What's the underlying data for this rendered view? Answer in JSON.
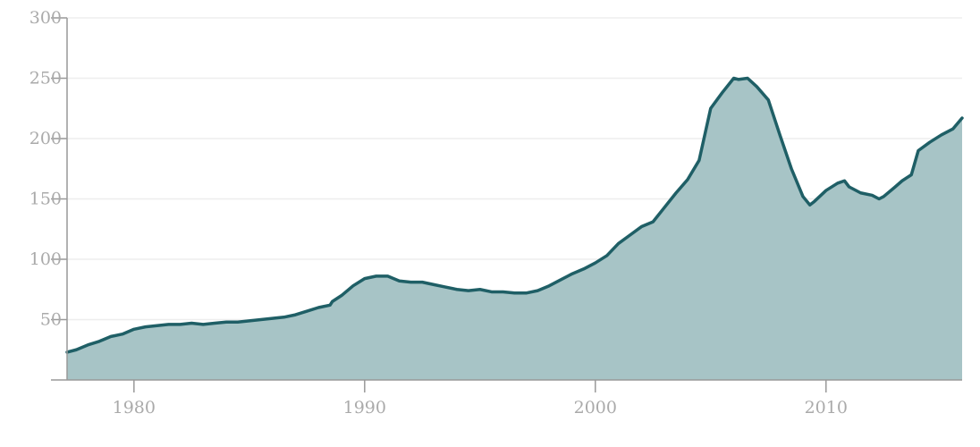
{
  "chart_data": {
    "type": "area",
    "title": "",
    "xlabel": "",
    "ylabel": "",
    "xlim": [
      1977.1,
      2015.9
    ],
    "ylim": [
      0,
      300
    ],
    "grid": true,
    "x_ticks": [
      1980,
      1990,
      2000,
      2010
    ],
    "x_tick_labels": [
      "1980",
      "1990",
      "2000",
      "2010"
    ],
    "y_ticks": [
      50,
      100,
      150,
      200,
      250,
      300
    ],
    "y_tick_labels": [
      "50",
      "100",
      "150",
      "200",
      "250",
      "300"
    ],
    "colors": {
      "line": "#1f5f66",
      "fill": "#a7c4c6",
      "grid": "#eeeeee",
      "axis": "#999999",
      "tick_label": "#aaaaaa"
    },
    "series": [
      {
        "x": [
          1977.1,
          1977.5,
          1978.0,
          1978.5,
          1979.0,
          1979.5,
          1980.0,
          1980.5,
          1981.0,
          1981.5,
          1982.0,
          1982.5,
          1983.0,
          1983.5,
          1984.0,
          1984.5,
          1985.0,
          1985.5,
          1986.0,
          1986.5,
          1987.0,
          1987.5,
          1988.0,
          1988.5,
          1988.6,
          1989.0,
          1989.5,
          1990.0,
          1990.5,
          1991.0,
          1991.5,
          1992.0,
          1992.5,
          1993.0,
          1993.5,
          1994.0,
          1994.5,
          1995.0,
          1995.5,
          1996.0,
          1996.5,
          1997.0,
          1997.5,
          1998.0,
          1998.5,
          1999.0,
          1999.5,
          2000.0,
          2000.5,
          2001.0,
          2001.5,
          2002.0,
          2002.5,
          2003.0,
          2003.5,
          2004.0,
          2004.5,
          2005.0,
          2005.5,
          2006.0,
          2006.2,
          2006.6,
          2007.0,
          2007.5,
          2008.0,
          2008.5,
          2009.0,
          2009.3,
          2009.5,
          2010.0,
          2010.5,
          2010.8,
          2011.0,
          2011.5,
          2012.0,
          2012.3,
          2012.5,
          2013.0,
          2013.3,
          2013.7,
          2014.0,
          2014.5,
          2015.0,
          2015.5,
          2015.9
        ],
        "y": [
          23,
          25,
          29,
          32,
          36,
          38,
          42,
          44,
          45,
          46,
          46,
          47,
          46,
          47,
          48,
          48,
          49,
          50,
          51,
          52,
          54,
          57,
          60,
          62,
          65,
          70,
          78,
          84,
          86,
          86,
          82,
          81,
          81,
          79,
          77,
          75,
          74,
          75,
          73,
          73,
          72,
          72,
          74,
          78,
          83,
          88,
          92,
          97,
          103,
          113,
          120,
          127,
          131,
          143,
          155,
          166,
          182,
          225,
          238,
          250,
          249,
          250,
          243,
          232,
          203,
          175,
          152,
          145,
          148,
          157,
          163,
          165,
          160,
          155,
          153,
          150,
          152,
          160,
          165,
          170,
          190,
          197,
          203,
          208,
          217
        ]
      }
    ]
  }
}
